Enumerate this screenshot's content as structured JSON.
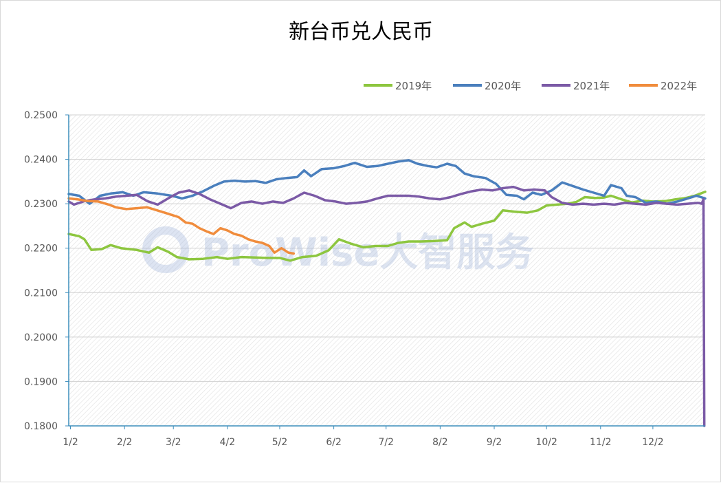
{
  "chart_data": {
    "type": "line",
    "title": "新台币兑人民币",
    "xlabel": "",
    "ylabel": "",
    "x_ticks": [
      "1/2",
      "2/2",
      "3/2",
      "4/2",
      "5/2",
      "6/2",
      "7/2",
      "8/2",
      "9/2",
      "10/2",
      "11/2",
      "12/2"
    ],
    "y_ticks": [
      "0.1800",
      "0.1900",
      "0.2000",
      "0.2100",
      "0.2200",
      "0.2300",
      "0.2400",
      "0.2500"
    ],
    "ylim": [
      0.18,
      0.25
    ],
    "xlim_days": [
      1,
      366
    ],
    "grid": true,
    "legend_position": "top-right",
    "watermark": "ProWise大智服务",
    "series": [
      {
        "name": "2019年",
        "color": "#8dc63f",
        "points": [
          [
            1,
            0.2232
          ],
          [
            7,
            0.2227
          ],
          [
            10,
            0.222
          ],
          [
            14,
            0.2196
          ],
          [
            20,
            0.2198
          ],
          [
            25,
            0.2207
          ],
          [
            31,
            0.22
          ],
          [
            40,
            0.2196
          ],
          [
            47,
            0.219
          ],
          [
            52,
            0.2202
          ],
          [
            58,
            0.2192
          ],
          [
            63,
            0.218
          ],
          [
            70,
            0.2175
          ],
          [
            78,
            0.2176
          ],
          [
            86,
            0.218
          ],
          [
            92,
            0.2176
          ],
          [
            100,
            0.218
          ],
          [
            108,
            0.2179
          ],
          [
            116,
            0.2178
          ],
          [
            122,
            0.2178
          ],
          [
            128,
            0.2172
          ],
          [
            135,
            0.218
          ],
          [
            143,
            0.2183
          ],
          [
            150,
            0.2195
          ],
          [
            156,
            0.222
          ],
          [
            163,
            0.221
          ],
          [
            170,
            0.2202
          ],
          [
            177,
            0.2205
          ],
          [
            184,
            0.2205
          ],
          [
            190,
            0.2212
          ],
          [
            196,
            0.2215
          ],
          [
            203,
            0.2215
          ],
          [
            210,
            0.2216
          ],
          [
            218,
            0.2218
          ],
          [
            222,
            0.2245
          ],
          [
            228,
            0.2258
          ],
          [
            232,
            0.2248
          ],
          [
            238,
            0.2255
          ],
          [
            245,
            0.2262
          ],
          [
            250,
            0.2285
          ],
          [
            257,
            0.2282
          ],
          [
            264,
            0.228
          ],
          [
            270,
            0.2285
          ],
          [
            275,
            0.2296
          ],
          [
            281,
            0.2298
          ],
          [
            287,
            0.23
          ],
          [
            292,
            0.2304
          ],
          [
            297,
            0.2315
          ],
          [
            303,
            0.2313
          ],
          [
            308,
            0.2314
          ],
          [
            312,
            0.2318
          ],
          [
            318,
            0.231
          ],
          [
            324,
            0.2303
          ],
          [
            330,
            0.2307
          ],
          [
            336,
            0.2305
          ],
          [
            343,
            0.2306
          ],
          [
            349,
            0.231
          ],
          [
            355,
            0.2313
          ],
          [
            360,
            0.2318
          ],
          [
            366,
            0.2327
          ]
        ]
      },
      {
        "name": "2020年",
        "color": "#4a7fbd",
        "points": [
          [
            1,
            0.2322
          ],
          [
            7,
            0.2318
          ],
          [
            13,
            0.23
          ],
          [
            19,
            0.2318
          ],
          [
            25,
            0.2323
          ],
          [
            32,
            0.2326
          ],
          [
            38,
            0.2318
          ],
          [
            44,
            0.2326
          ],
          [
            52,
            0.2323
          ],
          [
            60,
            0.2318
          ],
          [
            66,
            0.2312
          ],
          [
            72,
            0.2318
          ],
          [
            78,
            0.2328
          ],
          [
            84,
            0.234
          ],
          [
            90,
            0.235
          ],
          [
            96,
            0.2352
          ],
          [
            102,
            0.235
          ],
          [
            108,
            0.2351
          ],
          [
            114,
            0.2347
          ],
          [
            120,
            0.2355
          ],
          [
            126,
            0.2358
          ],
          [
            132,
            0.236
          ],
          [
            136,
            0.2375
          ],
          [
            140,
            0.2362
          ],
          [
            146,
            0.2378
          ],
          [
            153,
            0.238
          ],
          [
            159,
            0.2385
          ],
          [
            165,
            0.2392
          ],
          [
            172,
            0.2383
          ],
          [
            178,
            0.2385
          ],
          [
            184,
            0.239
          ],
          [
            190,
            0.2395
          ],
          [
            196,
            0.2398
          ],
          [
            201,
            0.239
          ],
          [
            207,
            0.2385
          ],
          [
            212,
            0.2382
          ],
          [
            218,
            0.239
          ],
          [
            223,
            0.2385
          ],
          [
            228,
            0.2368
          ],
          [
            233,
            0.2362
          ],
          [
            240,
            0.2358
          ],
          [
            246,
            0.2345
          ],
          [
            252,
            0.232
          ],
          [
            258,
            0.2318
          ],
          [
            262,
            0.231
          ],
          [
            267,
            0.2325
          ],
          [
            272,
            0.232
          ],
          [
            278,
            0.233
          ],
          [
            284,
            0.2348
          ],
          [
            290,
            0.234
          ],
          [
            296,
            0.2332
          ],
          [
            302,
            0.2325
          ],
          [
            308,
            0.2318
          ],
          [
            312,
            0.2342
          ],
          [
            318,
            0.2335
          ],
          [
            321,
            0.2318
          ],
          [
            326,
            0.2315
          ],
          [
            332,
            0.2302
          ],
          [
            338,
            0.2305
          ],
          [
            344,
            0.23
          ],
          [
            350,
            0.2305
          ],
          [
            356,
            0.2312
          ],
          [
            361,
            0.2318
          ],
          [
            366,
            0.2312
          ]
        ]
      },
      {
        "name": "2021年",
        "color": "#7b5aa6",
        "points": [
          [
            1,
            0.2305
          ],
          [
            4,
            0.2298
          ],
          [
            10,
            0.2306
          ],
          [
            16,
            0.231
          ],
          [
            22,
            0.2312
          ],
          [
            28,
            0.2316
          ],
          [
            34,
            0.2318
          ],
          [
            40,
            0.232
          ],
          [
            46,
            0.2306
          ],
          [
            52,
            0.2298
          ],
          [
            58,
            0.2312
          ],
          [
            64,
            0.2325
          ],
          [
            70,
            0.233
          ],
          [
            76,
            0.2322
          ],
          [
            82,
            0.231
          ],
          [
            88,
            0.23
          ],
          [
            94,
            0.229
          ],
          [
            100,
            0.2302
          ],
          [
            106,
            0.2305
          ],
          [
            112,
            0.23
          ],
          [
            118,
            0.2305
          ],
          [
            124,
            0.2302
          ],
          [
            130,
            0.2312
          ],
          [
            136,
            0.2325
          ],
          [
            142,
            0.2318
          ],
          [
            148,
            0.2308
          ],
          [
            154,
            0.2305
          ],
          [
            160,
            0.23
          ],
          [
            166,
            0.2302
          ],
          [
            172,
            0.2305
          ],
          [
            178,
            0.2312
          ],
          [
            184,
            0.2318
          ],
          [
            190,
            0.2318
          ],
          [
            196,
            0.2318
          ],
          [
            202,
            0.2316
          ],
          [
            208,
            0.2312
          ],
          [
            214,
            0.231
          ],
          [
            220,
            0.2315
          ],
          [
            226,
            0.2322
          ],
          [
            232,
            0.2328
          ],
          [
            238,
            0.2332
          ],
          [
            244,
            0.233
          ],
          [
            250,
            0.2335
          ],
          [
            256,
            0.2338
          ],
          [
            262,
            0.233
          ],
          [
            268,
            0.2332
          ],
          [
            274,
            0.233
          ],
          [
            278,
            0.2315
          ],
          [
            284,
            0.2302
          ],
          [
            290,
            0.2298
          ],
          [
            296,
            0.23
          ],
          [
            302,
            0.2298
          ],
          [
            308,
            0.23
          ],
          [
            314,
            0.2298
          ],
          [
            320,
            0.2302
          ],
          [
            326,
            0.23
          ],
          [
            332,
            0.2298
          ],
          [
            338,
            0.2302
          ],
          [
            344,
            0.23
          ],
          [
            350,
            0.2298
          ],
          [
            356,
            0.23
          ],
          [
            362,
            0.2302
          ],
          [
            364,
            0.23
          ],
          [
            365,
            0.231
          ],
          [
            365.5,
            0.18
          ]
        ]
      },
      {
        "name": "2022年",
        "color": "#f08c3c",
        "points": [
          [
            1,
            0.2312
          ],
          [
            6,
            0.231
          ],
          [
            12,
            0.2306
          ],
          [
            18,
            0.2305
          ],
          [
            24,
            0.2298
          ],
          [
            28,
            0.2292
          ],
          [
            34,
            0.2288
          ],
          [
            40,
            0.229
          ],
          [
            46,
            0.2292
          ],
          [
            51,
            0.2286
          ],
          [
            56,
            0.228
          ],
          [
            60,
            0.2275
          ],
          [
            64,
            0.227
          ],
          [
            68,
            0.2258
          ],
          [
            72,
            0.2255
          ],
          [
            76,
            0.2245
          ],
          [
            80,
            0.2238
          ],
          [
            84,
            0.2232
          ],
          [
            88,
            0.2245
          ],
          [
            92,
            0.224
          ],
          [
            96,
            0.2232
          ],
          [
            100,
            0.2228
          ],
          [
            104,
            0.222
          ],
          [
            108,
            0.2215
          ],
          [
            112,
            0.2212
          ],
          [
            116,
            0.2205
          ],
          [
            119,
            0.219
          ],
          [
            123,
            0.22
          ],
          [
            127,
            0.219
          ],
          [
            130,
            0.2188
          ]
        ]
      }
    ]
  }
}
